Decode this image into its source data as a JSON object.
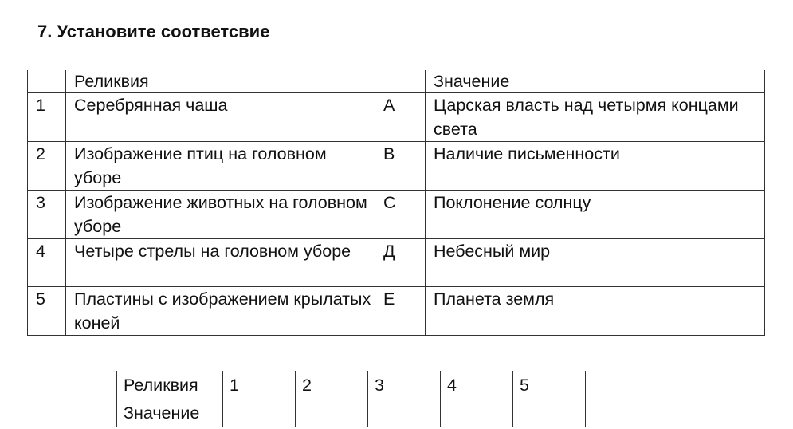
{
  "title": "7. Установите соответсвие",
  "main_table": {
    "header": {
      "num": "",
      "relic": "Реликвия",
      "letter": "",
      "meaning": "Значение"
    },
    "rows": [
      {
        "num": "1",
        "relic": "Серебрянная чаша",
        "letter": "А",
        "meaning": "Царская власть над четырмя концами света"
      },
      {
        "num": "2",
        "relic": "Изображение птиц на головном уборе",
        "letter": "В",
        "meaning": "Наличие письменности"
      },
      {
        "num": "3",
        "relic": "Изображение животных на головном уборе",
        "letter": "С",
        "meaning": "Поклонение солнцу"
      },
      {
        "num": "4",
        "relic": "Четыре стрелы на головном уборе",
        "letter": "Д",
        "meaning": "Небесный мир"
      },
      {
        "num": "5",
        "relic": "Пластины с изображением крылатых коней",
        "letter": "Е",
        "meaning": "Планета земля"
      }
    ]
  },
  "answer_table": {
    "row1_label": "Реликвия",
    "row2_label": "Значение",
    "numbers": [
      "1",
      "2",
      "3",
      "4",
      "5"
    ]
  }
}
